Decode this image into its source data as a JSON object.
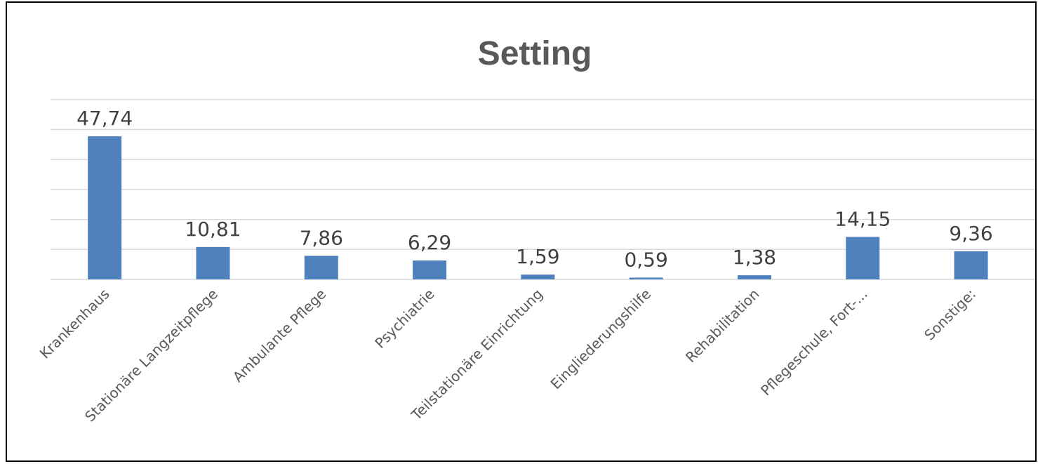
{
  "chart_data": {
    "type": "bar",
    "title": "Setting",
    "categories": [
      "Krankenhaus",
      "Stationäre Langzeitpflege",
      "Ambulante Pflege",
      "Psychiatrie",
      "Teilstationäre Einrichtung",
      "Eingliederungshilfe",
      "Rehabilitation",
      "Pflegeschule, Fort-...",
      "Sonstige:"
    ],
    "values": [
      47.74,
      10.81,
      7.86,
      6.29,
      1.59,
      0.59,
      1.38,
      14.15,
      9.36
    ],
    "value_labels": [
      "47,74",
      "10,81",
      "7,86",
      "6,29",
      "1,59",
      "0,59",
      "1,38",
      "14,15",
      "9,36"
    ],
    "ylim": [
      0,
      60
    ],
    "y_gridline_step": 10,
    "grid": true,
    "legend": "none",
    "colors": {
      "bar": "#4f81bd",
      "grid": "#d9d9d9",
      "title": "#595959",
      "labels": "#404040"
    }
  }
}
